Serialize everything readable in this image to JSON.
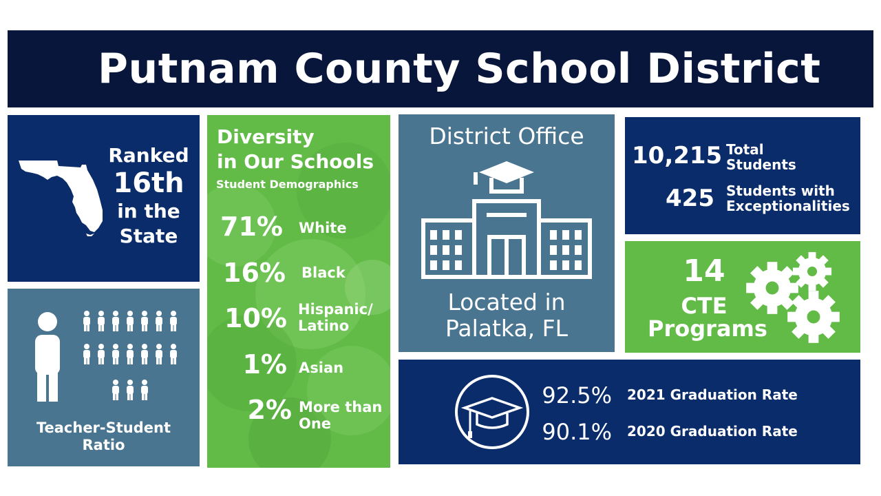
{
  "header": {
    "title": "Putnam County School District"
  },
  "ranking": {
    "line1": "Ranked",
    "line2": "16th",
    "line3": "in the",
    "line4": "State"
  },
  "ratio": {
    "label": "Teacher-Student\nRatio"
  },
  "diversity": {
    "title": "Diversity\nin Our Schools",
    "subtitle": "Student Demographics",
    "items": [
      {
        "percent": "71%",
        "label": "White"
      },
      {
        "percent": "16%",
        "label": "Black"
      },
      {
        "percent": "10%",
        "label": "Hispanic/\nLatino"
      },
      {
        "percent": "1%",
        "label": "Asian"
      },
      {
        "percent": "2%",
        "label": "More than\nOne"
      }
    ]
  },
  "office": {
    "title": "District Office",
    "location": "Located in\nPalatka, FL"
  },
  "students": {
    "total_value": "10,215",
    "total_label": "Total\nStudents",
    "exceptional_value": "425",
    "exceptional_label": "Students with\nExceptionalities"
  },
  "cte": {
    "count": "14",
    "line1": "CTE",
    "line2": "Programs"
  },
  "graduation": {
    "rows": [
      {
        "rate": "92.5%",
        "label": "2021 Graduation Rate"
      },
      {
        "rate": "90.1%",
        "label": "2020 Graduation Rate"
      }
    ]
  },
  "colors": {
    "navy": "#07163a",
    "blue": "#0b2c6a",
    "slate": "#4a7591",
    "green": "#62bb47"
  },
  "icons": [
    "florida-map-icon",
    "teacher-student-icon",
    "school-building-icon",
    "gears-icon",
    "graduation-cap-icon"
  ]
}
